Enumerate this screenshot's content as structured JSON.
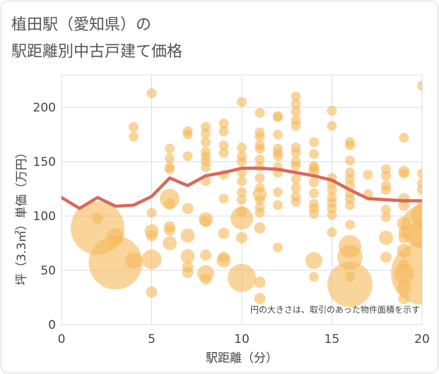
{
  "title": {
    "line1": "植田駅（愛知県）の",
    "line2": "駅距離別中古戸建て価格"
  },
  "chart_data": {
    "type": "scatter",
    "xlabel": "駅距離（分）",
    "ylabel": "坪（3.3㎡）単価（万円）",
    "xlim": [
      0,
      20
    ],
    "ylim": [
      0,
      230
    ],
    "x_ticks": [
      0,
      5,
      10,
      15,
      20
    ],
    "y_ticks": [
      0,
      50,
      100,
      150,
      200
    ],
    "grid": true,
    "note": "円の大きさは、取引のあった物件面積を示す",
    "colors": {
      "bubble": "#f5b95a",
      "line": "#d9695a",
      "grid": "#d5dde6"
    },
    "bubbles": [
      [
        2,
        89,
        38
      ],
      [
        2,
        98,
        8
      ],
      [
        3,
        57,
        38
      ],
      [
        3,
        81,
        12
      ],
      [
        4,
        59,
        12
      ],
      [
        4,
        182,
        7
      ],
      [
        4,
        173,
        7
      ],
      [
        5,
        213,
        7
      ],
      [
        5,
        103,
        7
      ],
      [
        5,
        86,
        10
      ],
      [
        5,
        82,
        8
      ],
      [
        5,
        60,
        14
      ],
      [
        5,
        30,
        8
      ],
      [
        6,
        162,
        7
      ],
      [
        6,
        153,
        7
      ],
      [
        6,
        145,
        7
      ],
      [
        6,
        143,
        7
      ],
      [
        6,
        116,
        14
      ],
      [
        6,
        111,
        8
      ],
      [
        6,
        90,
        8
      ],
      [
        6,
        87,
        8
      ],
      [
        6,
        75,
        10
      ],
      [
        7,
        178,
        7
      ],
      [
        7,
        175,
        7
      ],
      [
        7,
        155,
        7
      ],
      [
        7,
        107,
        8
      ],
      [
        7,
        82,
        10
      ],
      [
        7,
        63,
        10
      ],
      [
        7,
        53,
        8
      ],
      [
        7,
        48,
        8
      ],
      [
        8,
        182,
        7
      ],
      [
        8,
        176,
        7
      ],
      [
        8,
        168,
        7
      ],
      [
        8,
        159,
        7
      ],
      [
        8,
        155,
        7
      ],
      [
        8,
        150,
        7
      ],
      [
        8,
        145,
        7
      ],
      [
        8,
        132,
        7
      ],
      [
        8,
        97,
        10
      ],
      [
        8,
        95,
        8
      ],
      [
        8,
        64,
        8
      ],
      [
        8,
        47,
        12
      ],
      [
        8,
        42,
        8
      ],
      [
        9,
        185,
        7
      ],
      [
        9,
        178,
        7
      ],
      [
        9,
        165,
        7
      ],
      [
        9,
        158,
        7
      ],
      [
        9,
        138,
        7
      ],
      [
        9,
        116,
        7
      ],
      [
        9,
        84,
        8
      ],
      [
        9,
        62,
        8
      ],
      [
        9,
        59,
        10
      ],
      [
        10,
        205,
        7
      ],
      [
        10,
        163,
        7
      ],
      [
        10,
        155,
        7
      ],
      [
        10,
        150,
        7
      ],
      [
        10,
        140,
        7
      ],
      [
        10,
        132,
        7
      ],
      [
        10,
        122,
        7
      ],
      [
        10,
        115,
        7
      ],
      [
        10,
        104,
        8
      ],
      [
        10,
        98,
        16
      ],
      [
        10,
        80,
        8
      ],
      [
        10,
        43,
        20
      ],
      [
        11,
        195,
        7
      ],
      [
        11,
        177,
        7
      ],
      [
        11,
        173,
        7
      ],
      [
        11,
        165,
        7
      ],
      [
        11,
        162,
        7
      ],
      [
        11,
        152,
        7
      ],
      [
        11,
        145,
        7
      ],
      [
        11,
        135,
        7
      ],
      [
        11,
        126,
        7
      ],
      [
        11,
        120,
        10
      ],
      [
        11,
        115,
        7
      ],
      [
        11,
        108,
        7
      ],
      [
        11,
        103,
        7
      ],
      [
        11,
        89,
        8
      ],
      [
        11,
        39,
        8
      ],
      [
        11,
        24,
        8
      ],
      [
        12,
        192,
        7
      ],
      [
        12,
        191,
        7
      ],
      [
        12,
        175,
        7
      ],
      [
        12,
        162,
        7
      ],
      [
        12,
        158,
        7
      ],
      [
        12,
        155,
        7
      ],
      [
        12,
        145,
        7
      ],
      [
        12,
        140,
        7
      ],
      [
        12,
        122,
        7
      ],
      [
        12,
        110,
        7
      ],
      [
        12,
        71,
        7
      ],
      [
        13,
        210,
        7
      ],
      [
        13,
        203,
        7
      ],
      [
        13,
        196,
        7
      ],
      [
        13,
        188,
        7
      ],
      [
        13,
        183,
        7
      ],
      [
        13,
        163,
        7
      ],
      [
        13,
        158,
        7
      ],
      [
        13,
        150,
        7
      ],
      [
        13,
        146,
        7
      ],
      [
        13,
        134,
        7
      ],
      [
        13,
        126,
        7
      ],
      [
        13,
        118,
        7
      ],
      [
        13,
        113,
        7
      ],
      [
        14,
        168,
        7
      ],
      [
        14,
        157,
        7
      ],
      [
        14,
        146,
        7
      ],
      [
        14,
        144,
        7
      ],
      [
        14,
        141,
        8
      ],
      [
        14,
        131,
        7
      ],
      [
        14,
        121,
        7
      ],
      [
        14,
        111,
        7
      ],
      [
        14,
        107,
        7
      ],
      [
        14,
        102,
        7
      ],
      [
        14,
        59,
        12
      ],
      [
        14,
        44,
        7
      ],
      [
        15,
        197,
        7
      ],
      [
        15,
        183,
        7
      ],
      [
        15,
        135,
        7
      ],
      [
        15,
        130,
        7
      ],
      [
        15,
        124,
        7
      ],
      [
        15,
        117,
        7
      ],
      [
        15,
        112,
        7
      ],
      [
        15,
        107,
        7
      ],
      [
        15,
        101,
        7
      ],
      [
        15,
        85,
        7
      ],
      [
        16,
        168,
        7
      ],
      [
        16,
        165,
        7
      ],
      [
        16,
        151,
        7
      ],
      [
        16,
        140,
        7
      ],
      [
        16,
        134,
        7
      ],
      [
        16,
        128,
        7
      ],
      [
        16,
        121,
        7
      ],
      [
        16,
        116,
        7
      ],
      [
        16,
        110,
        7
      ],
      [
        16,
        92,
        7
      ],
      [
        16,
        72,
        16
      ],
      [
        16,
        62,
        18
      ],
      [
        16,
        37,
        32
      ],
      [
        16,
        44,
        7
      ],
      [
        17,
        138,
        7
      ],
      [
        17,
        120,
        7
      ],
      [
        18,
        143,
        7
      ],
      [
        18,
        137,
        7
      ],
      [
        18,
        128,
        7
      ],
      [
        18,
        124,
        7
      ],
      [
        18,
        106,
        7
      ],
      [
        18,
        99,
        7
      ],
      [
        18,
        80,
        10
      ],
      [
        18,
        62,
        8
      ],
      [
        19,
        172,
        7
      ],
      [
        19,
        141,
        8
      ],
      [
        19,
        139,
        7
      ],
      [
        19,
        116,
        8
      ],
      [
        19,
        110,
        8
      ],
      [
        19,
        93,
        10
      ],
      [
        19,
        85,
        8
      ],
      [
        19,
        80,
        8
      ],
      [
        19,
        68,
        10
      ],
      [
        19,
        55,
        8
      ],
      [
        19,
        47,
        14
      ],
      [
        19,
        34,
        10
      ],
      [
        19,
        24,
        8
      ],
      [
        20,
        220,
        7
      ],
      [
        20,
        139,
        7
      ],
      [
        20,
        130,
        7
      ],
      [
        20,
        124,
        7
      ],
      [
        20,
        110,
        7
      ],
      [
        20,
        101,
        16
      ],
      [
        20,
        90,
        30
      ],
      [
        20,
        84,
        20
      ],
      [
        20,
        47,
        44
      ]
    ],
    "trend": {
      "x": [
        0,
        1,
        2,
        3,
        4,
        5,
        6,
        7,
        8,
        9,
        10,
        11,
        12,
        13,
        14,
        15,
        16,
        17,
        18,
        19,
        20
      ],
      "y": [
        117,
        107,
        117,
        109,
        110,
        118,
        135,
        128,
        137,
        140,
        144,
        144,
        143,
        140,
        137,
        133,
        124,
        116,
        115,
        114,
        114
      ]
    }
  }
}
